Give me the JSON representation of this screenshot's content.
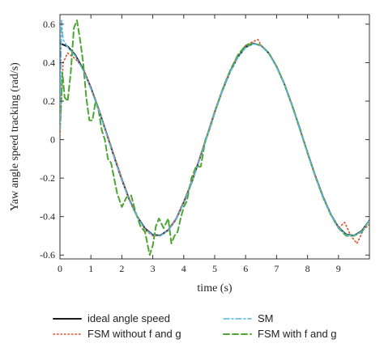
{
  "chart_data": {
    "type": "line",
    "xlabel": "time (s)",
    "ylabel": "Yaw angle speed tracking (rad/s)",
    "xlim": [
      0,
      10
    ],
    "ylim": [
      -0.62,
      0.65
    ],
    "x_ticks": [
      "0",
      "1",
      "2",
      "3",
      "4",
      "5",
      "6",
      "7",
      "8",
      "9"
    ],
    "x_tick_values": [
      0,
      1,
      2,
      3,
      4,
      5,
      6,
      7,
      8,
      9
    ],
    "y_ticks": [
      "0.6",
      "0.4",
      "0.2",
      "0",
      "-0.2",
      "-0.4",
      "-0.6"
    ],
    "y_tick_values": [
      0.6,
      0.4,
      0.2,
      0,
      -0.2,
      -0.4,
      -0.6
    ],
    "grid": false,
    "legend_position": "bottom",
    "series": [
      {
        "name": "ideal angle speed",
        "color": "#1a1a1a",
        "style": "solid",
        "x": [
          0,
          0.25,
          0.5,
          0.75,
          1.0,
          1.25,
          1.5,
          1.75,
          2.0,
          2.25,
          2.5,
          2.75,
          3.0,
          3.25,
          3.5,
          3.75,
          4.0,
          4.25,
          4.5,
          4.75,
          5.0,
          5.25,
          5.5,
          5.75,
          6.0,
          6.25,
          6.5,
          6.75,
          7.0,
          7.25,
          7.5,
          7.75,
          8.0,
          8.25,
          8.5,
          8.75,
          9.0,
          9.25,
          9.5,
          9.75,
          10.0
        ],
        "y": [
          0.5,
          0.484,
          0.439,
          0.366,
          0.27,
          0.158,
          0.035,
          -0.089,
          -0.208,
          -0.315,
          -0.401,
          -0.462,
          -0.495,
          -0.498,
          -0.47,
          -0.414,
          -0.327,
          -0.226,
          -0.106,
          0.017,
          0.142,
          0.256,
          0.354,
          0.43,
          0.48,
          0.5,
          0.489,
          0.449,
          0.38,
          0.289,
          0.178,
          0.057,
          -0.068,
          -0.188,
          -0.297,
          -0.388,
          -0.456,
          -0.493,
          -0.499,
          -0.475,
          -0.42
        ]
      },
      {
        "name": "SM",
        "color": "#5ab4dc",
        "style": "dashdot",
        "x": [
          0,
          0.05,
          0.1,
          0.25,
          0.5,
          0.75,
          1.0,
          1.25,
          1.5,
          1.75,
          2.0,
          2.25,
          2.5,
          2.75,
          3.0,
          3.25,
          3.5,
          3.75,
          4.0,
          4.25,
          4.5,
          4.75,
          5.0,
          5.25,
          5.5,
          5.75,
          6.0,
          6.25,
          6.5,
          6.75,
          7.0,
          7.25,
          7.5,
          7.75,
          8.0,
          8.25,
          8.5,
          8.75,
          9.0,
          9.25,
          9.5,
          9.75,
          10.0
        ],
        "y": [
          0.05,
          0.62,
          0.52,
          0.48,
          0.435,
          0.36,
          0.265,
          0.155,
          0.032,
          -0.092,
          -0.21,
          -0.318,
          -0.404,
          -0.465,
          -0.497,
          -0.5,
          -0.472,
          -0.415,
          -0.33,
          -0.228,
          -0.108,
          0.015,
          0.14,
          0.255,
          0.352,
          0.428,
          0.478,
          0.498,
          0.487,
          0.447,
          0.378,
          0.287,
          0.176,
          0.055,
          -0.07,
          -0.19,
          -0.299,
          -0.39,
          -0.458,
          -0.495,
          -0.5,
          -0.477,
          -0.422
        ]
      },
      {
        "name": "FSM without f and g",
        "color": "#d9532c",
        "style": "dotted",
        "x": [
          0,
          0.1,
          0.25,
          0.5,
          0.75,
          1.0,
          1.25,
          1.5,
          1.75,
          2.0,
          2.25,
          2.5,
          2.75,
          3.0,
          3.25,
          3.5,
          3.75,
          4.0,
          4.25,
          4.5,
          4.75,
          5.0,
          5.25,
          5.5,
          5.75,
          6.0,
          6.25,
          6.4,
          6.5,
          6.75,
          7.0,
          7.25,
          7.5,
          7.75,
          8.0,
          8.25,
          8.5,
          8.75,
          9.0,
          9.2,
          9.4,
          9.6,
          9.8,
          10.0
        ],
        "y": [
          0.02,
          0.4,
          0.45,
          0.42,
          0.37,
          0.27,
          0.16,
          0.04,
          -0.08,
          -0.2,
          -0.31,
          -0.4,
          -0.47,
          -0.5,
          -0.5,
          -0.47,
          -0.41,
          -0.32,
          -0.22,
          -0.1,
          0.02,
          0.15,
          0.26,
          0.36,
          0.44,
          0.49,
          0.51,
          0.52,
          0.49,
          0.45,
          0.38,
          0.29,
          0.18,
          0.06,
          -0.07,
          -0.19,
          -0.3,
          -0.39,
          -0.46,
          -0.43,
          -0.5,
          -0.54,
          -0.47,
          -0.44
        ]
      },
      {
        "name": "FSM with f and g",
        "color": "#4ca630",
        "style": "dashed",
        "x": [
          0,
          0.08,
          0.15,
          0.25,
          0.35,
          0.45,
          0.55,
          0.65,
          0.75,
          0.85,
          0.95,
          1.05,
          1.15,
          1.25,
          1.35,
          1.45,
          1.55,
          1.65,
          1.75,
          1.85,
          2.0,
          2.15,
          2.3,
          2.45,
          2.6,
          2.75,
          2.9,
          3.0,
          3.1,
          3.2,
          3.35,
          3.5,
          3.6,
          3.7,
          3.8,
          3.9,
          4.0,
          4.1,
          4.25,
          4.4,
          4.55,
          4.7,
          4.85,
          5.0,
          5.25,
          5.5,
          5.75,
          6.0,
          6.25,
          6.5,
          6.75,
          7.0,
          7.25,
          7.5,
          7.75,
          8.0,
          8.25,
          8.5,
          8.75,
          9.0,
          9.25,
          9.5,
          9.75,
          10.0
        ],
        "y": [
          0.05,
          0.35,
          0.22,
          0.2,
          0.35,
          0.58,
          0.62,
          0.52,
          0.4,
          0.22,
          0.1,
          0.1,
          0.2,
          0.15,
          0.05,
          0.0,
          -0.1,
          -0.12,
          -0.2,
          -0.28,
          -0.35,
          -0.3,
          -0.29,
          -0.38,
          -0.45,
          -0.48,
          -0.6,
          -0.55,
          -0.45,
          -0.41,
          -0.46,
          -0.41,
          -0.54,
          -0.5,
          -0.48,
          -0.41,
          -0.35,
          -0.32,
          -0.2,
          -0.14,
          -0.14,
          0.0,
          0.06,
          0.14,
          0.26,
          0.36,
          0.44,
          0.49,
          0.5,
          0.49,
          0.45,
          0.38,
          0.29,
          0.18,
          0.06,
          -0.07,
          -0.19,
          -0.3,
          -0.39,
          -0.46,
          -0.5,
          -0.5,
          -0.48,
          -0.42
        ]
      }
    ]
  }
}
